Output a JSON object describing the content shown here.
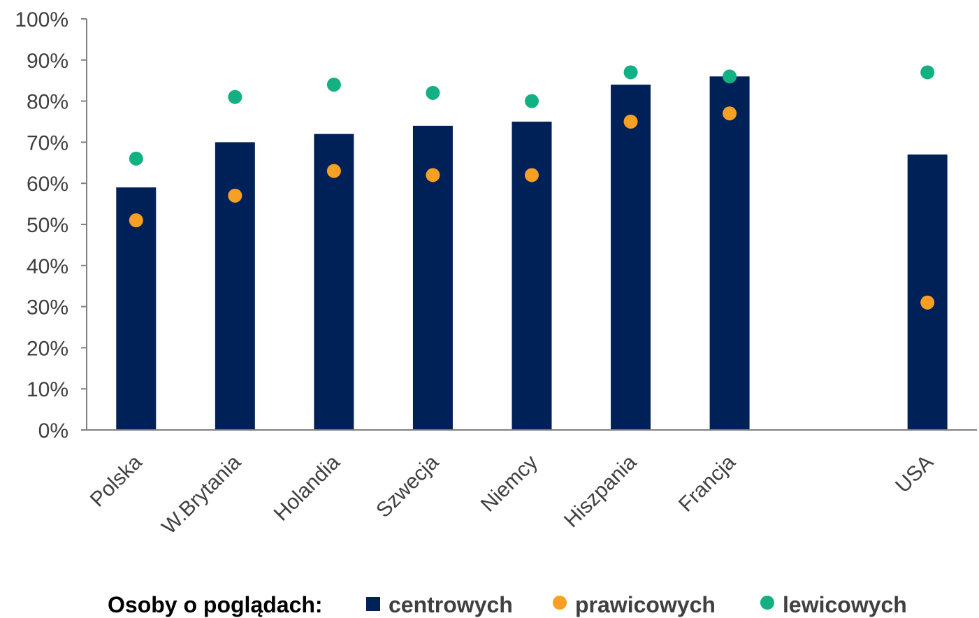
{
  "chart_data": {
    "type": "bar",
    "categories": [
      "Polska",
      "W.Brytania",
      "Holandia",
      "Szwecja",
      "Niemcy",
      "Hiszpania",
      "Francja",
      "",
      "USA"
    ],
    "series": [
      {
        "name": "centrowych",
        "type": "bar",
        "color": "#002157",
        "values": [
          59,
          70,
          72,
          74,
          75,
          84,
          86,
          null,
          67
        ]
      },
      {
        "name": "prawicowych",
        "type": "scatter",
        "color": "#F7A023",
        "values": [
          51,
          57,
          63,
          62,
          62,
          75,
          77,
          null,
          31
        ]
      },
      {
        "name": "lewicowych",
        "type": "scatter",
        "color": "#13B083",
        "values": [
          66,
          81,
          84,
          82,
          80,
          87,
          86,
          null,
          87
        ]
      }
    ],
    "ylim": [
      0,
      100
    ],
    "yticks": [
      0,
      10,
      20,
      30,
      40,
      50,
      60,
      70,
      80,
      90,
      100
    ],
    "ytick_suffix": "%",
    "grid": false,
    "legend": {
      "placement": "bottom",
      "title": "Osoby o poglądach:"
    },
    "title": "",
    "xlabel": "",
    "ylabel": ""
  }
}
